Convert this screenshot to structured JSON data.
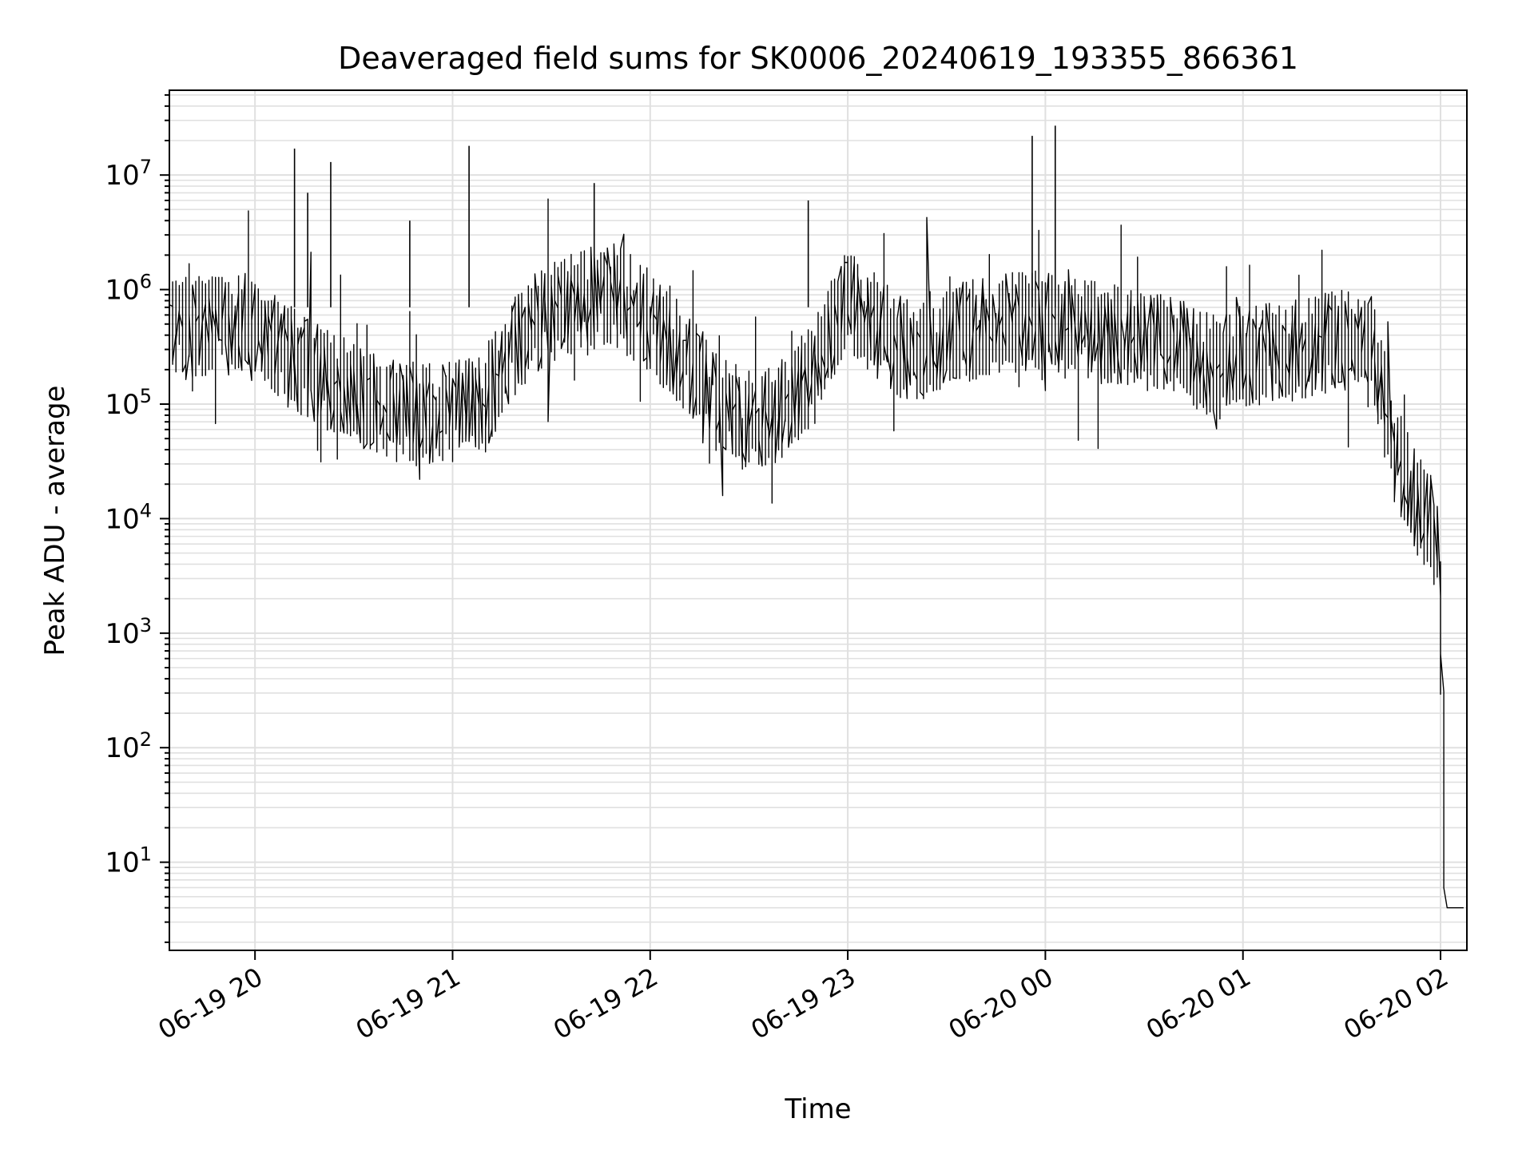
{
  "chart_data": {
    "type": "line",
    "title": "Deaveraged field sums for SK0006_20240619_193355_866361",
    "xlabel": "Time",
    "ylabel": "Peak ADU - average",
    "xscale": "time",
    "yscale": "log",
    "xlim": [
      "2024-06-19 19:34",
      "2024-06-20 02:08"
    ],
    "ylim": [
      1.7,
      55000000
    ],
    "grid": true,
    "line_color": "#000000",
    "grid_color": "#e0e0e0",
    "x_tick_labels": [
      "06-19 20",
      "06-19 21",
      "06-19 22",
      "06-19 23",
      "06-20 00",
      "06-20 01",
      "06-20 02"
    ],
    "x_tick_values": [
      "2024-06-19 20:00",
      "2024-06-19 21:00",
      "2024-06-19 22:00",
      "2024-06-19 23:00",
      "2024-06-20 00:00",
      "2024-06-20 01:00",
      "2024-06-20 02:00"
    ],
    "y_tick_labels": [
      {
        "base": "10",
        "exp": "1",
        "value": 10
      },
      {
        "base": "10",
        "exp": "2",
        "value": 100
      },
      {
        "base": "10",
        "exp": "3",
        "value": 1000
      },
      {
        "base": "10",
        "exp": "4",
        "value": 10000
      },
      {
        "base": "10",
        "exp": "5",
        "value": 100000
      },
      {
        "base": "10",
        "exp": "6",
        "value": 1000000
      },
      {
        "base": "10",
        "exp": "7",
        "value": 10000000
      }
    ],
    "series": [
      {
        "x": [
          "2024-06-19 19:34",
          "2024-06-19 19:40",
          "2024-06-19 19:50",
          "2024-06-19 20:00",
          "2024-06-19 20:05",
          "2024-06-19 20:10",
          "2024-06-19 20:20",
          "2024-06-19 20:30",
          "2024-06-19 20:40",
          "2024-06-19 20:50",
          "2024-06-19 21:00",
          "2024-06-19 21:10",
          "2024-06-19 21:20",
          "2024-06-19 21:30",
          "2024-06-19 21:40",
          "2024-06-19 21:50",
          "2024-06-19 22:00",
          "2024-06-19 22:10",
          "2024-06-19 22:20",
          "2024-06-19 22:30",
          "2024-06-19 22:40",
          "2024-06-19 22:50",
          "2024-06-19 23:00",
          "2024-06-19 23:10",
          "2024-06-19 23:20",
          "2024-06-19 23:30",
          "2024-06-19 23:40",
          "2024-06-19 23:50",
          "2024-06-20 00:00",
          "2024-06-20 00:10",
          "2024-06-20 00:20",
          "2024-06-20 00:30",
          "2024-06-20 00:40",
          "2024-06-20 00:50",
          "2024-06-20 01:00",
          "2024-06-20 01:10",
          "2024-06-20 01:20",
          "2024-06-20 01:30",
          "2024-06-20 01:38",
          "2024-06-20 01:42",
          "2024-06-20 01:46",
          "2024-06-20 01:50",
          "2024-06-20 01:55",
          "2024-06-20 01:58",
          "2024-06-20 02:00",
          "2024-06-20 02:01",
          "2024-06-20 02:02",
          "2024-06-20 02:08"
        ],
        "y": [
          550000,
          500000,
          550000,
          600000,
          400000,
          300000,
          200000,
          150000,
          100000,
          90000,
          95000,
          110000,
          400000,
          700000,
          900000,
          1000000,
          600000,
          300000,
          120000,
          80000,
          100000,
          200000,
          900000,
          500000,
          300000,
          450000,
          500000,
          550000,
          600000,
          500000,
          450000,
          400000,
          350000,
          250000,
          280000,
          300000,
          350000,
          400000,
          450000,
          200000,
          50000,
          25000,
          12000,
          9000,
          5000,
          500,
          4,
          4
        ],
        "spikes_x": [
          "2024-06-19 20:12",
          "2024-06-19 20:16",
          "2024-06-19 20:23",
          "2024-06-19 20:47",
          "2024-06-19 21:05",
          "2024-06-19 21:43",
          "2024-06-19 22:48",
          "2024-06-19 23:56",
          "2024-06-20 00:03"
        ],
        "spikes_y": [
          17000000,
          7000000,
          13000000,
          4000000,
          18000000,
          8500000,
          6000000,
          22000000,
          27000000
        ]
      }
    ]
  }
}
